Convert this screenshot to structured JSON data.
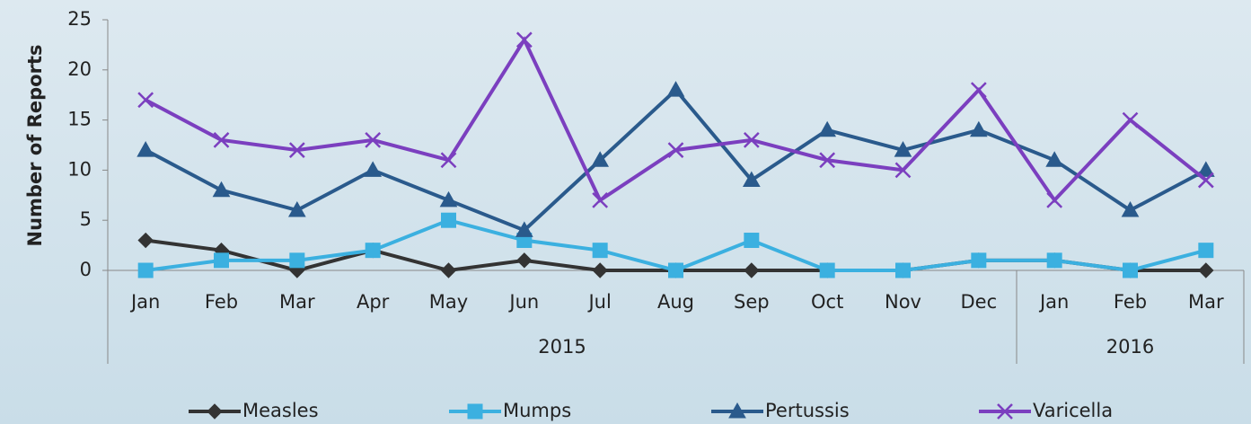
{
  "chart_data": {
    "type": "line",
    "y_label": "Number of Reports",
    "categories": [
      "Jan",
      "Feb",
      "Mar",
      "Apr",
      "May",
      "Jun",
      "Jul",
      "Aug",
      "Sep",
      "Oct",
      "Nov",
      "Dec",
      "Jan",
      "Feb",
      "Mar"
    ],
    "groups": [
      {
        "label": "2015",
        "span": 12
      },
      {
        "label": "2016",
        "span": 3
      }
    ],
    "series": [
      {
        "name": "Measles",
        "color": "#333333",
        "marker": "diamond",
        "values": [
          3,
          2,
          0,
          2,
          0,
          1,
          0,
          0,
          0,
          0,
          0,
          1,
          1,
          0,
          0
        ]
      },
      {
        "name": "Mumps",
        "color": "#3bb0e0",
        "marker": "square",
        "values": [
          0,
          1,
          1,
          2,
          5,
          3,
          2,
          0,
          3,
          0,
          0,
          1,
          1,
          0,
          2
        ]
      },
      {
        "name": "Pertussis",
        "color": "#2a5a8c",
        "marker": "triangle",
        "values": [
          12,
          8,
          6,
          10,
          7,
          4,
          11,
          18,
          9,
          14,
          12,
          14,
          11,
          6,
          10
        ]
      },
      {
        "name": "Varicella",
        "color": "#7b3fbf",
        "marker": "x",
        "values": [
          17,
          13,
          12,
          13,
          11,
          23,
          7,
          12,
          13,
          11,
          10,
          18,
          7,
          15,
          9
        ]
      }
    ],
    "ylim": [
      0,
      25
    ],
    "yticks": [
      0,
      5,
      10,
      15,
      20,
      25
    ],
    "grid": false,
    "legend": "bottom"
  }
}
